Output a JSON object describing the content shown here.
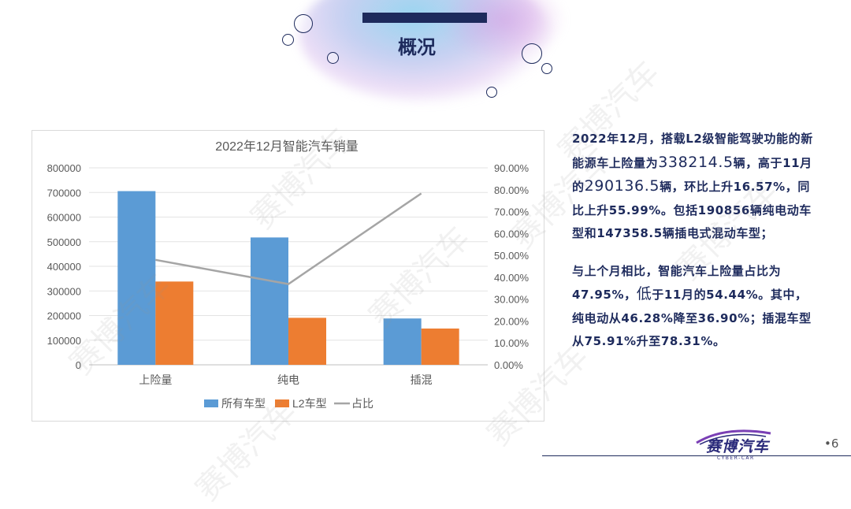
{
  "page": {
    "title": "概况",
    "page_number": "•6",
    "logo_text": "赛博汽车",
    "logo_subtext": "CYBER-CAR",
    "watermark": "赛博汽车"
  },
  "text": {
    "p1": [
      {
        "t": "2022年12月，搭载L2级智能驾驶功能的新能源车上险量为"
      },
      {
        "t": "338214.5",
        "big": true
      },
      {
        "t": "辆，高于11月的"
      },
      {
        "t": "290136.5",
        "big": true
      },
      {
        "t": "辆，环比上升16.57%，同比上升55.99%。包括190856辆纯电动车型和147358.5辆插电式混动车型；"
      }
    ],
    "p2": [
      {
        "t": "与上个月相比，智能汽车上险量占比为47.95%，"
      },
      {
        "t": "低",
        "big": true
      },
      {
        "t": "于11月的54.44%。其中，纯电动从46.28%降至36.90%；插混车型从75.91%升至78.31%。"
      }
    ]
  },
  "chart_data": {
    "type": "bar",
    "title": "2022年12月智能汽车销量",
    "categories": [
      "上险量",
      "纯电",
      "插混"
    ],
    "series": [
      {
        "name": "所有车型",
        "type": "bar",
        "axis": "left",
        "color": "#5b9bd5",
        "values": [
          705400,
          517200,
          188200
        ]
      },
      {
        "name": "L2车型",
        "type": "bar",
        "axis": "left",
        "color": "#ed7d31",
        "values": [
          338214.5,
          190856,
          147358.5
        ]
      },
      {
        "name": "占比",
        "type": "line",
        "axis": "right",
        "color": "#a5a5a5",
        "values": [
          0.4795,
          0.369,
          0.7831
        ]
      }
    ],
    "y_left": {
      "min": 0,
      "max": 800000,
      "step": 100000,
      "ticks": [
        "0",
        "100000",
        "200000",
        "300000",
        "400000",
        "500000",
        "600000",
        "700000",
        "800000"
      ]
    },
    "y_right": {
      "min": 0,
      "max": 0.9,
      "step": 0.1,
      "ticks": [
        "0.00%",
        "10.00%",
        "20.00%",
        "30.00%",
        "40.00%",
        "50.00%",
        "60.00%",
        "70.00%",
        "80.00%",
        "90.00%"
      ]
    },
    "grid": true,
    "legend": "bottom"
  }
}
